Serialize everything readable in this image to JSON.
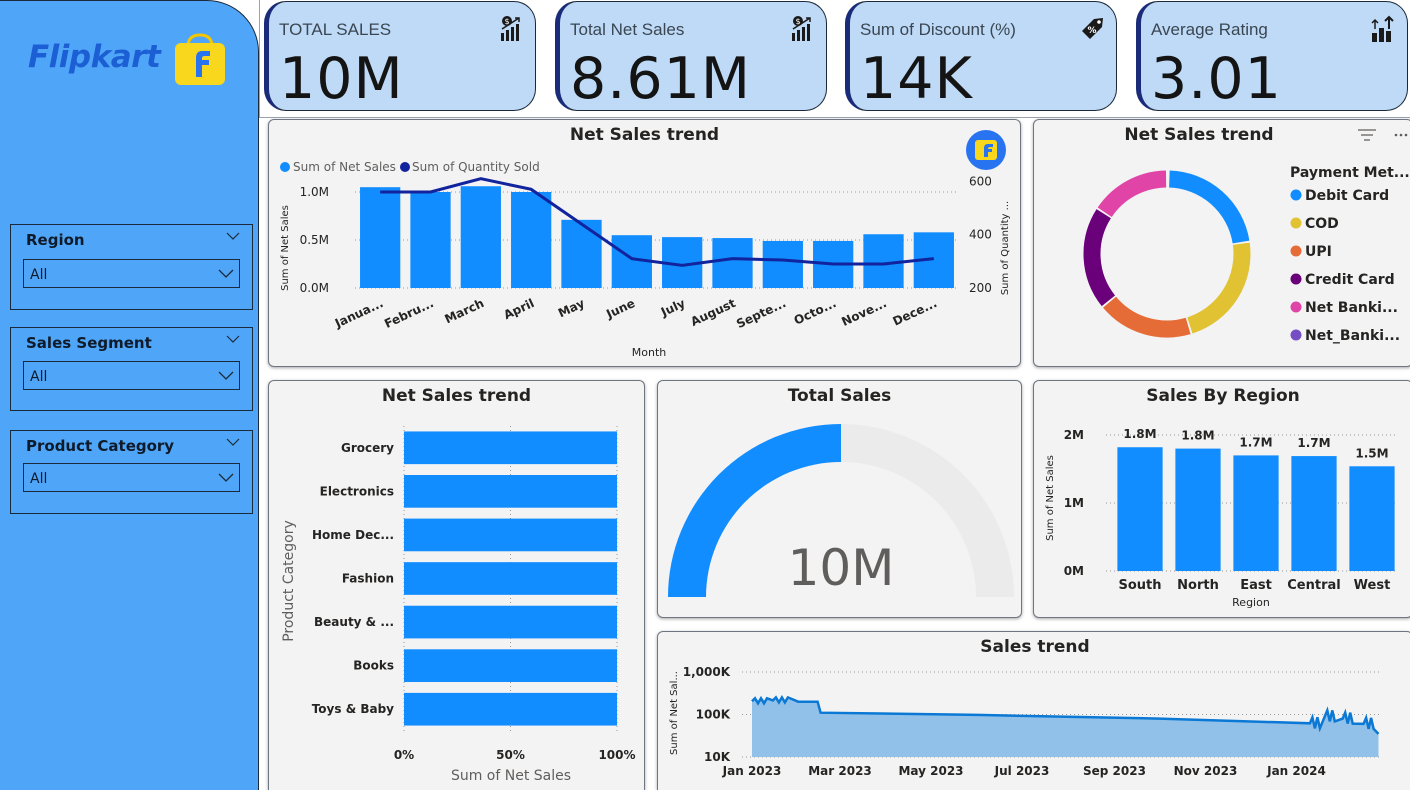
{
  "brand": {
    "name": "Flipkart"
  },
  "filters": [
    {
      "label": "Region",
      "value": "All"
    },
    {
      "label": "Sales Segment",
      "value": "All"
    },
    {
      "label": "Product Category",
      "value": "All"
    }
  ],
  "kpis": [
    {
      "title": "TOTAL SALES",
      "value": "10M",
      "icon": "chart-coin-icon"
    },
    {
      "title": "Total Net Sales",
      "value": "8.61M",
      "icon": "chart-coin-icon"
    },
    {
      "title": "Sum of Discount (%)",
      "value": "14K",
      "icon": "discount-tag-icon"
    },
    {
      "title": "Average Rating",
      "value": "3.01",
      "icon": "growth-bars-icon"
    }
  ],
  "colors": {
    "primary": "#118dff",
    "line": "#12239e",
    "sidebar": "#4fa6f8",
    "kpi_bg": "#bfdaf6"
  },
  "combo": {
    "title": "Net Sales trend",
    "legend": [
      "Sum of Net Sales",
      "Sum of Quantity Sold"
    ],
    "xlabel": "Month",
    "ylabel_left": "Sum of Net Sales",
    "ylabel_right": "Sum of Quantity ...",
    "left_ticks": [
      "1.0M",
      "0.5M",
      "0.0M"
    ],
    "right_ticks": [
      "600",
      "400",
      "200"
    ]
  },
  "donut": {
    "title": "Net Sales trend",
    "legend_title": "Payment Met..."
  },
  "hbar": {
    "title": "Net Sales trend",
    "ylabel": "Product Category",
    "xlabel": "Sum of Net Sales",
    "ticks": [
      "0%",
      "50%",
      "100%"
    ]
  },
  "gauge": {
    "title": "Total Sales",
    "value": "10M",
    "fraction": 0.5
  },
  "region": {
    "title": "Sales By Region",
    "ylabel": "Sum of Net Sales",
    "xlabel": "Region",
    "ticks": [
      "2M",
      "1M",
      "0M"
    ]
  },
  "area": {
    "title": "Sales trend",
    "ylabel": "Sum of Net Sal...",
    "ticks": [
      "1,000K",
      "100K",
      "10K"
    ]
  },
  "chart_data": [
    {
      "type": "bar",
      "title": "Net Sales trend",
      "xlabel": "Month",
      "ylabel": "Sum of Net Sales",
      "categories": [
        "Janua...",
        "Febru...",
        "March",
        "April",
        "May",
        "June",
        "July",
        "August",
        "Septe...",
        "Octo...",
        "Nove...",
        "Dece..."
      ],
      "series": [
        {
          "name": "Sum of Net Sales",
          "axis": "left",
          "values": [
            1050000,
            1000000,
            1060000,
            1000000,
            710000,
            550000,
            530000,
            520000,
            490000,
            490000,
            560000,
            580000
          ]
        },
        {
          "name": "Sum of Quantity Sold",
          "axis": "right",
          "type": "line",
          "values": [
            560,
            560,
            610,
            570,
            440,
            310,
            285,
            310,
            305,
            290,
            290,
            310
          ]
        }
      ],
      "ylim": [
        0,
        1250000
      ],
      "y2lim": [
        200,
        650
      ],
      "legend": "top-left"
    },
    {
      "type": "pie",
      "title": "Net Sales trend",
      "legend_title": "Payment Met...",
      "categories": [
        "Debit Card",
        "COD",
        "UPI",
        "Credit Card",
        "Net Banki...",
        "Net_Banki..."
      ],
      "values": [
        20.5,
        20.8,
        17.3,
        18.5,
        14.5,
        0.3
      ],
      "colors": [
        "#118dff",
        "#e1c233",
        "#e66c37",
        "#6b007b",
        "#e044a7",
        "#744ec2"
      ],
      "legend": "right"
    },
    {
      "type": "bar",
      "orientation": "horizontal",
      "title": "Net Sales trend",
      "xlabel": "Sum of Net Sales",
      "ylabel": "Product Category",
      "categories": [
        "Grocery",
        "Electronics",
        "Home Dec...",
        "Fashion",
        "Beauty & ...",
        "Books",
        "Toys & Baby"
      ],
      "values": [
        100,
        100,
        100,
        100,
        100,
        100,
        100
      ],
      "xlim": [
        0,
        100
      ],
      "unit": "%"
    },
    {
      "type": "bar",
      "title": "Sales By Region",
      "xlabel": "Region",
      "ylabel": "Sum of Net Sales",
      "categories": [
        "South",
        "North",
        "East",
        "Central",
        "West"
      ],
      "values": [
        1820000,
        1800000,
        1700000,
        1690000,
        1540000
      ],
      "data_labels": [
        "1.8M",
        "1.8M",
        "1.7M",
        "1.7M",
        "1.5M"
      ],
      "ylim": [
        0,
        2000000
      ]
    },
    {
      "type": "area",
      "title": "Sales trend",
      "ylabel": "Sum of Net Sal...",
      "x_ticks": [
        "Jan 2023",
        "Mar 2023",
        "May 2023",
        "Jul 2023",
        "Sep 2023",
        "Nov 2023",
        "Jan 2024"
      ],
      "y_scale": "log",
      "ylim": [
        10000,
        1000000
      ],
      "x": [
        "2023-01-01",
        "2023-01-15",
        "2023-02-01",
        "2023-02-14",
        "2023-02-16",
        "2023-06-01",
        "2023-10-01",
        "2024-01-10",
        "2024-01-20",
        "2024-02-01",
        "2024-02-15",
        "2024-02-25"
      ],
      "y": [
        205000,
        215000,
        200000,
        200000,
        110000,
        98000,
        80000,
        62000,
        90000,
        80000,
        60000,
        35000
      ]
    }
  ]
}
